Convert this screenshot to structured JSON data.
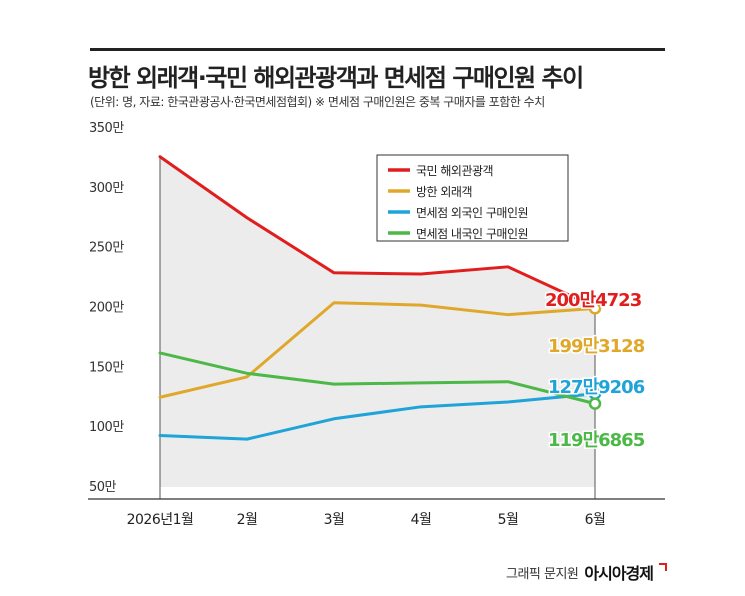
{
  "header": {
    "title": "방한 외래객·국민 해외관광객과 면세점 구매인원 추이",
    "subtitle": "(단위: 명, 자료: 한국관광공사·한국면세점협회)  ※ 면세점 구매인원은 중복 구매자를 포함한 수치"
  },
  "credit": {
    "byline": "그래픽 문지원",
    "brand": "아시아경제"
  },
  "chart_data": {
    "type": "line",
    "categories": [
      "2026년1월",
      "2월",
      "3월",
      "4월",
      "5월",
      "6월"
    ],
    "y_tick_labels": [
      "50만",
      "100만",
      "150만",
      "200만",
      "250만",
      "300만",
      "350만"
    ],
    "ylim": [
      500000,
      3500000
    ],
    "grid": false,
    "legend_position": "top-right",
    "series": [
      {
        "name": "국민 해외관광객",
        "color": "#e01e1e",
        "values": [
          3260000,
          2750000,
          2290000,
          2280000,
          2340000,
          2004723
        ],
        "end_label": "200만4723",
        "area": true
      },
      {
        "name": "방한 외래객",
        "color": "#e0a82a",
        "values": [
          1250000,
          1420000,
          2040000,
          2020000,
          1940000,
          1993128
        ],
        "end_label": "199만3128"
      },
      {
        "name": "면세점 외국인 구매인원",
        "color": "#1fa3d8",
        "values": [
          930000,
          900000,
          1070000,
          1170000,
          1210000,
          1279206
        ],
        "end_label": "127만9206"
      },
      {
        "name": "면세점 내국인 구매인원",
        "color": "#4cb848",
        "values": [
          1620000,
          1450000,
          1360000,
          1370000,
          1380000,
          1196865
        ],
        "end_label": "119만6865"
      }
    ]
  }
}
